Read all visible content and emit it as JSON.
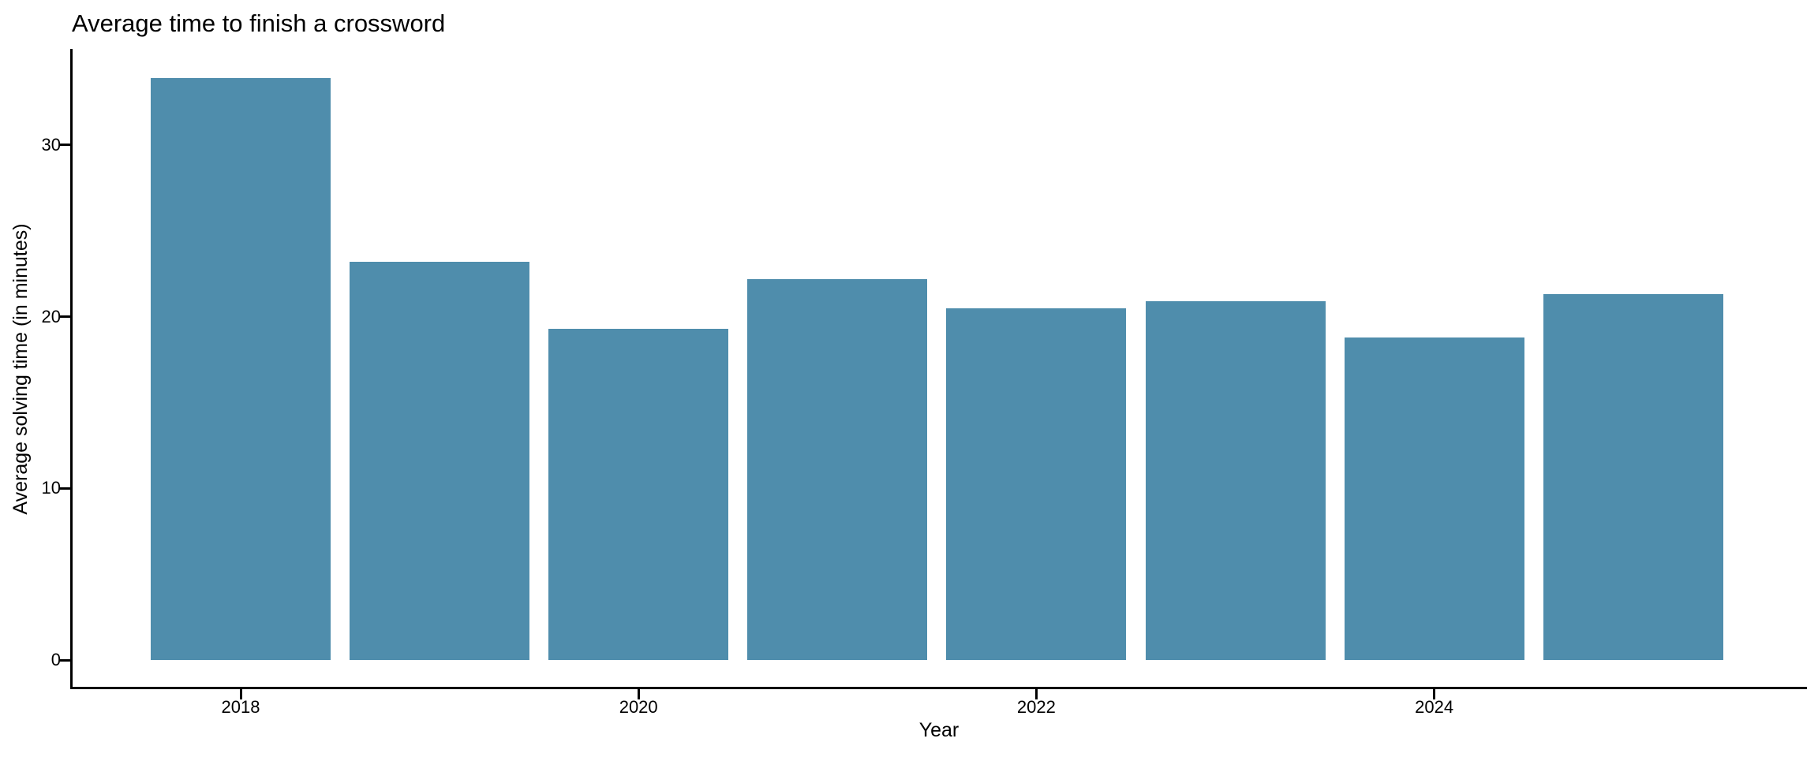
{
  "chart_data": {
    "type": "bar",
    "title": "Average time to finish a crossword",
    "xlabel": "Year",
    "ylabel": "Average solving time (in minutes)",
    "categories": [
      2018,
      2019,
      2020,
      2021,
      2022,
      2023,
      2024,
      2025
    ],
    "values": [
      33.9,
      23.2,
      19.3,
      22.2,
      20.5,
      20.9,
      18.8,
      21.3
    ],
    "x_tick_labels": [
      "2018",
      "2020",
      "2022",
      "2024"
    ],
    "y_ticks": [
      0,
      10,
      20,
      30
    ],
    "ylim": [
      -1.8,
      35.6
    ],
    "grid": false,
    "legend_position": "none",
    "bar_color": "#4f8dac",
    "axis_color": "#000000",
    "text_color": "#000000",
    "background_color": "#ffffff"
  }
}
